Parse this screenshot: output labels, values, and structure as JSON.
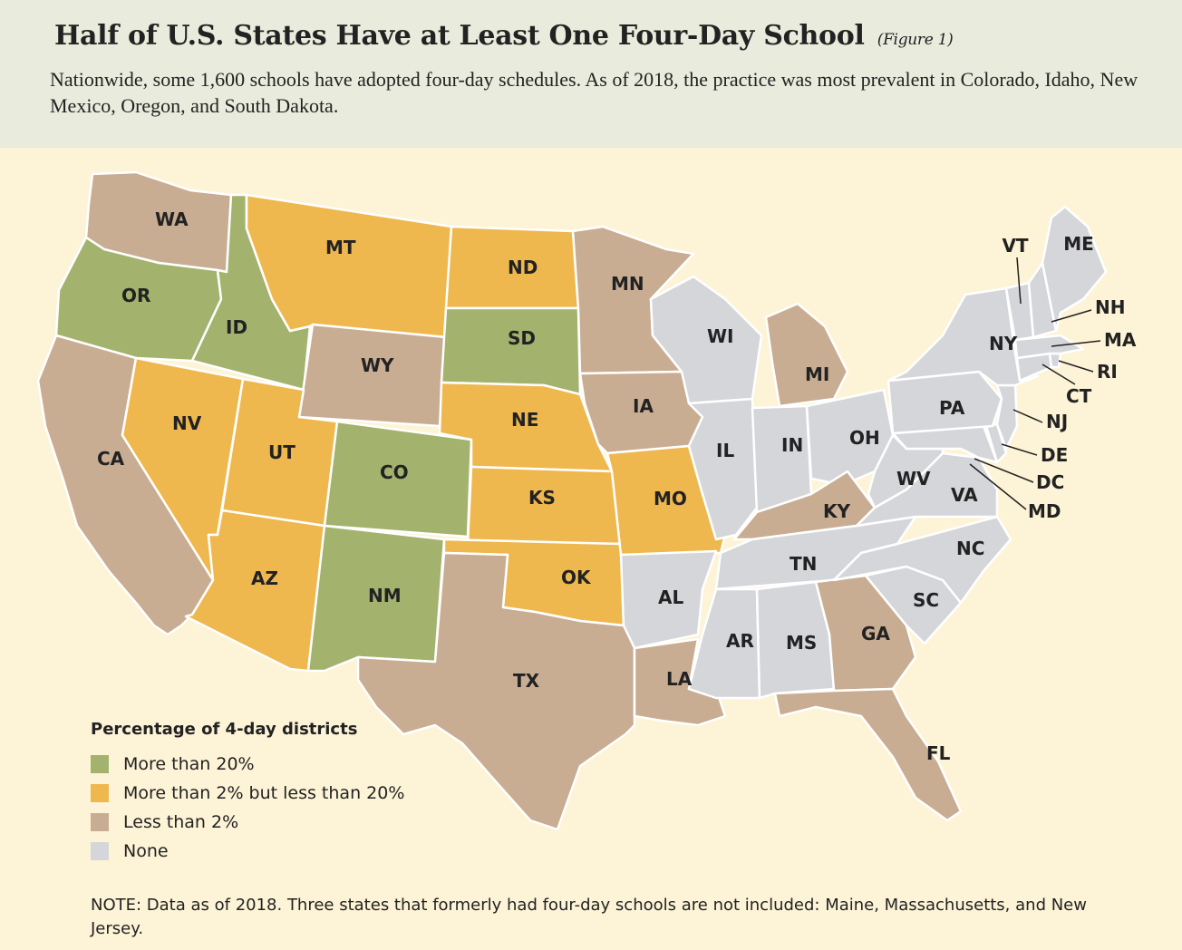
{
  "header": {
    "title": "Half of U.S. States Have at Least One Four-Day School",
    "figure_label": "(Figure 1)",
    "subtitle": "Nationwide, some 1,600 schools have adopted four-day schedules. As of 2018, the practice was most prevalent in Colorado, Idaho, New Mexico, Oregon, and South Dakota."
  },
  "colors": {
    "more_than_20": "#a3b36e",
    "2_to_20": "#efb84f",
    "less_than_2": "#c9ad93",
    "none": "#d5d6da",
    "border": "#ffffff",
    "background": "#fdf3d6",
    "header_band": "#e9ebdc"
  },
  "legend": {
    "title": "Percentage of 4-day districts",
    "items": [
      {
        "key": "more_than_20",
        "label": "More than 20%"
      },
      {
        "key": "2_to_20",
        "label": "More than 2% but less than 20%"
      },
      {
        "key": "less_than_2",
        "label": "Less than 2%"
      },
      {
        "key": "none",
        "label": "None"
      }
    ]
  },
  "states": {
    "more_than_20": [
      "OR",
      "ID",
      "SD",
      "CO",
      "NM"
    ],
    "2_to_20": [
      "MT",
      "ND",
      "NV",
      "UT",
      "NE",
      "KS",
      "MO",
      "AZ",
      "OK"
    ],
    "less_than_2": [
      "WA",
      "CA",
      "WY",
      "MN",
      "IA",
      "MI",
      "KY",
      "TX",
      "LA",
      "GA",
      "FL"
    ],
    "none": [
      "WI",
      "IL",
      "IN",
      "OH",
      "PA",
      "NY",
      "VT",
      "ME",
      "NH",
      "MA",
      "RI",
      "CT",
      "NJ",
      "DE",
      "DC",
      "MD",
      "WV",
      "VA",
      "NC",
      "SC",
      "TN",
      "AR",
      "MS",
      "AL"
    ]
  },
  "note": "NOTE: Data as of 2018. Three states that formerly had four-day schools are not included: Maine, Massachusetts, and New Jersey."
}
